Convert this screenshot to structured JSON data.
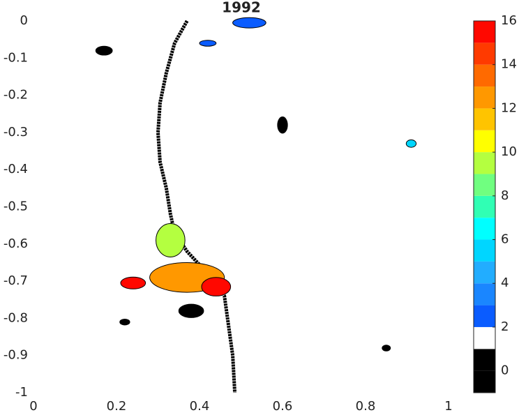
{
  "chart_data": {
    "type": "map",
    "title": "1992",
    "xlim": [
      0,
      1
    ],
    "ylim": [
      -1,
      0
    ],
    "xticks": [
      0,
      0.2,
      0.4,
      0.6,
      0.8,
      1
    ],
    "yticks": [
      0,
      -0.1,
      -0.2,
      -0.3,
      -0.4,
      -0.5,
      -0.6,
      -0.7,
      -0.8,
      -0.9,
      -1
    ],
    "colorbar": {
      "clim": [
        -1,
        16
      ],
      "ticks": [
        0,
        2,
        4,
        6,
        8,
        10,
        12,
        14,
        16
      ],
      "colors": [
        "#000000",
        "#000000",
        "#ffffff",
        "#0a5cff",
        "#1a86ff",
        "#22adff",
        "#00d6ff",
        "#00ffff",
        "#30ffb4",
        "#70ff80",
        "#b4ff40",
        "#ffff00",
        "#ffc400",
        "#ff9800",
        "#ff6a00",
        "#ff3a00",
        "#ff0800"
      ]
    },
    "river": {
      "x": [
        0.37,
        0.34,
        0.32,
        0.305,
        0.3,
        0.305,
        0.32,
        0.33,
        0.34,
        0.37,
        0.42,
        0.46,
        0.47,
        0.48,
        0.485
      ],
      "y": [
        0,
        -0.06,
        -0.14,
        -0.22,
        -0.3,
        -0.38,
        -0.45,
        -0.52,
        -0.57,
        -0.62,
        -0.68,
        -0.74,
        -0.82,
        -0.9,
        -1
      ]
    },
    "regions": [
      {
        "x": 0.52,
        "y": -0.005,
        "rx": 0.04,
        "ry": 0.014,
        "value": 2.5
      },
      {
        "x": 0.42,
        "y": -0.06,
        "rx": 0.02,
        "ry": 0.008,
        "value": 2.5
      },
      {
        "x": 0.91,
        "y": -0.33,
        "rx": 0.012,
        "ry": 0.01,
        "value": 5.5
      },
      {
        "x": 0.33,
        "y": -0.59,
        "rx": 0.035,
        "ry": 0.045,
        "value": 9.5
      },
      {
        "x": 0.37,
        "y": -0.69,
        "rx": 0.09,
        "ry": 0.04,
        "value": 12.5
      },
      {
        "x": 0.44,
        "y": -0.715,
        "rx": 0.035,
        "ry": 0.025,
        "value": 15.5
      },
      {
        "x": 0.24,
        "y": -0.705,
        "rx": 0.03,
        "ry": 0.016,
        "value": 15.5
      },
      {
        "x": 0.17,
        "y": -0.08,
        "rx": 0.02,
        "ry": 0.012,
        "value": 0
      },
      {
        "x": 0.6,
        "y": -0.28,
        "rx": 0.012,
        "ry": 0.022,
        "value": 0
      },
      {
        "x": 0.38,
        "y": -0.78,
        "rx": 0.03,
        "ry": 0.018,
        "value": 0
      },
      {
        "x": 0.85,
        "y": -0.88,
        "rx": 0.01,
        "ry": 0.008,
        "value": 0
      },
      {
        "x": 0.22,
        "y": -0.81,
        "rx": 0.012,
        "ry": 0.008,
        "value": 0
      }
    ]
  }
}
